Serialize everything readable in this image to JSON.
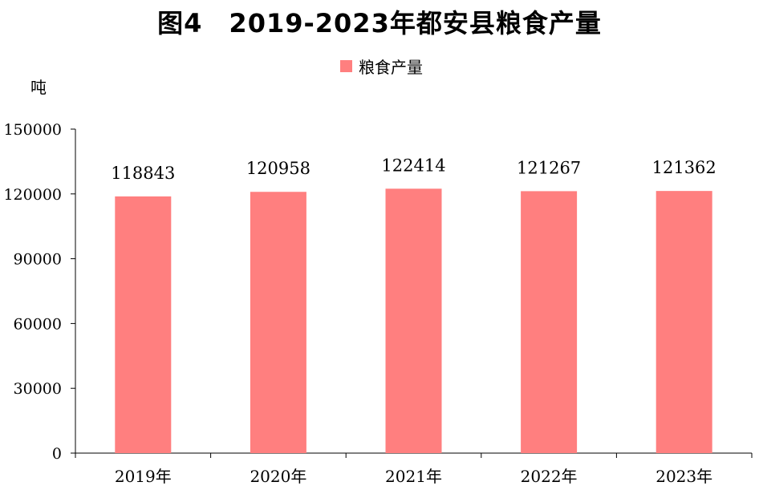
{
  "title": "图4　2019-2023年都安县粮食产量",
  "unit": "吨",
  "colors": {
    "bar": "#ff7f7f",
    "axis": "#000000"
  },
  "chart_data": {
    "type": "bar",
    "title": "图4　2019-2023年都安县粮食产量",
    "ylabel": "吨",
    "xlabel": "",
    "categories": [
      "2019年",
      "2020年",
      "2021年",
      "2022年",
      "2023年"
    ],
    "series": [
      {
        "name": "粮食产量",
        "values": [
          118843,
          120958,
          122414,
          121267,
          121362
        ]
      }
    ],
    "ylim": [
      0,
      150000
    ],
    "yticks": [
      0,
      30000,
      60000,
      90000,
      120000,
      150000
    ],
    "ytick_labels": [
      "0",
      "30000",
      "60000",
      "90000",
      "120000",
      "150000"
    ],
    "data_labels": [
      "118843",
      "120958",
      "122414",
      "121267",
      "121362"
    ],
    "legend_position": "top-center",
    "grid": false
  }
}
